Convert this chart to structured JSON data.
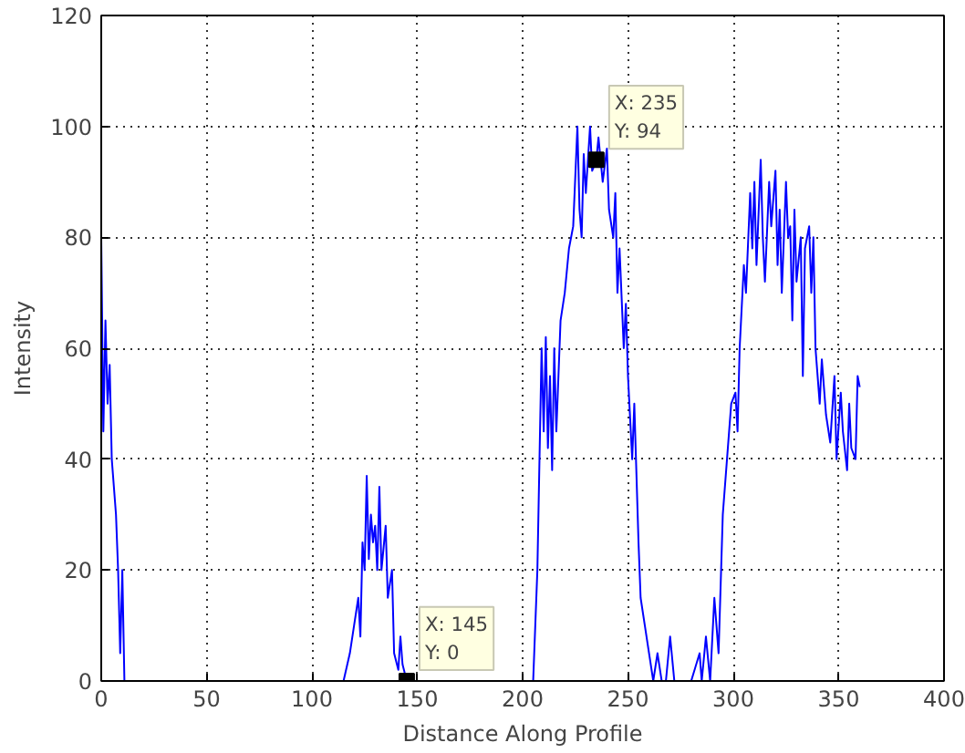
{
  "chart_data": {
    "type": "line",
    "xlabel": "Distance Along Profile",
    "ylabel": "Intensity",
    "xlim": [
      0,
      400
    ],
    "ylim": [
      0,
      120
    ],
    "xticks": [
      0,
      50,
      100,
      150,
      200,
      250,
      300,
      350,
      400
    ],
    "yticks": [
      0,
      20,
      40,
      60,
      80,
      100,
      120
    ],
    "grid": true,
    "line_style": "solid",
    "marker": "none",
    "x": [
      0,
      1,
      2,
      3,
      4,
      5,
      7,
      8,
      9,
      10,
      11,
      12,
      115,
      118,
      120,
      122,
      123,
      124,
      125,
      126,
      127,
      128,
      129,
      130,
      131,
      132,
      133,
      135,
      136,
      138,
      139,
      141,
      142,
      143,
      145,
      205,
      207,
      208,
      209,
      210,
      211,
      212,
      213,
      214,
      215,
      216,
      218,
      220,
      222,
      224,
      226,
      227,
      228,
      229,
      230,
      232,
      233,
      235,
      236,
      238,
      240,
      241,
      243,
      244,
      245,
      246,
      248,
      249,
      250,
      252,
      253,
      255,
      256,
      258,
      260,
      262,
      264,
      266,
      268,
      270,
      272,
      275,
      280,
      284,
      285,
      287,
      289,
      291,
      293,
      295,
      297,
      299,
      301,
      302,
      303,
      305,
      306,
      308,
      309,
      310,
      311,
      313,
      314,
      315,
      317,
      318,
      320,
      321,
      322,
      323,
      325,
      326,
      327,
      328,
      329,
      330,
      332,
      333,
      334,
      336,
      337,
      338,
      339,
      341,
      342,
      344,
      346,
      348,
      349,
      351,
      352,
      354,
      355,
      356,
      358,
      359,
      360
    ],
    "series": [
      {
        "color": "#0000ff",
        "values": [
          80,
          45,
          65,
          50,
          57,
          40,
          30,
          20,
          5,
          20,
          0,
          0,
          0,
          5,
          10,
          15,
          8,
          25,
          20,
          37,
          22,
          30,
          25,
          28,
          20,
          35,
          20,
          28,
          15,
          20,
          5,
          2,
          8,
          3,
          0,
          0,
          20,
          40,
          60,
          45,
          62,
          42,
          55,
          38,
          60,
          45,
          65,
          70,
          78,
          82,
          100,
          85,
          80,
          95,
          88,
          100,
          92,
          94,
          98,
          90,
          96,
          85,
          80,
          88,
          70,
          78,
          60,
          68,
          55,
          40,
          50,
          25,
          15,
          10,
          5,
          0,
          5,
          0,
          0,
          8,
          0,
          0,
          0,
          5,
          0,
          8,
          0,
          15,
          5,
          30,
          40,
          50,
          52,
          45,
          60,
          75,
          70,
          88,
          78,
          90,
          75,
          94,
          80,
          72,
          90,
          82,
          92,
          75,
          85,
          70,
          90,
          80,
          82,
          65,
          85,
          72,
          80,
          55,
          78,
          82,
          70,
          80,
          60,
          50,
          58,
          48,
          43,
          55,
          40,
          52,
          45,
          38,
          50,
          42,
          40,
          55,
          53
        ]
      }
    ],
    "annotations": [
      {
        "text": "X: 145\nY: 0",
        "x": 145,
        "y": 0
      },
      {
        "text": "X: 235\nY: 94",
        "x": 235,
        "y": 94
      }
    ]
  }
}
